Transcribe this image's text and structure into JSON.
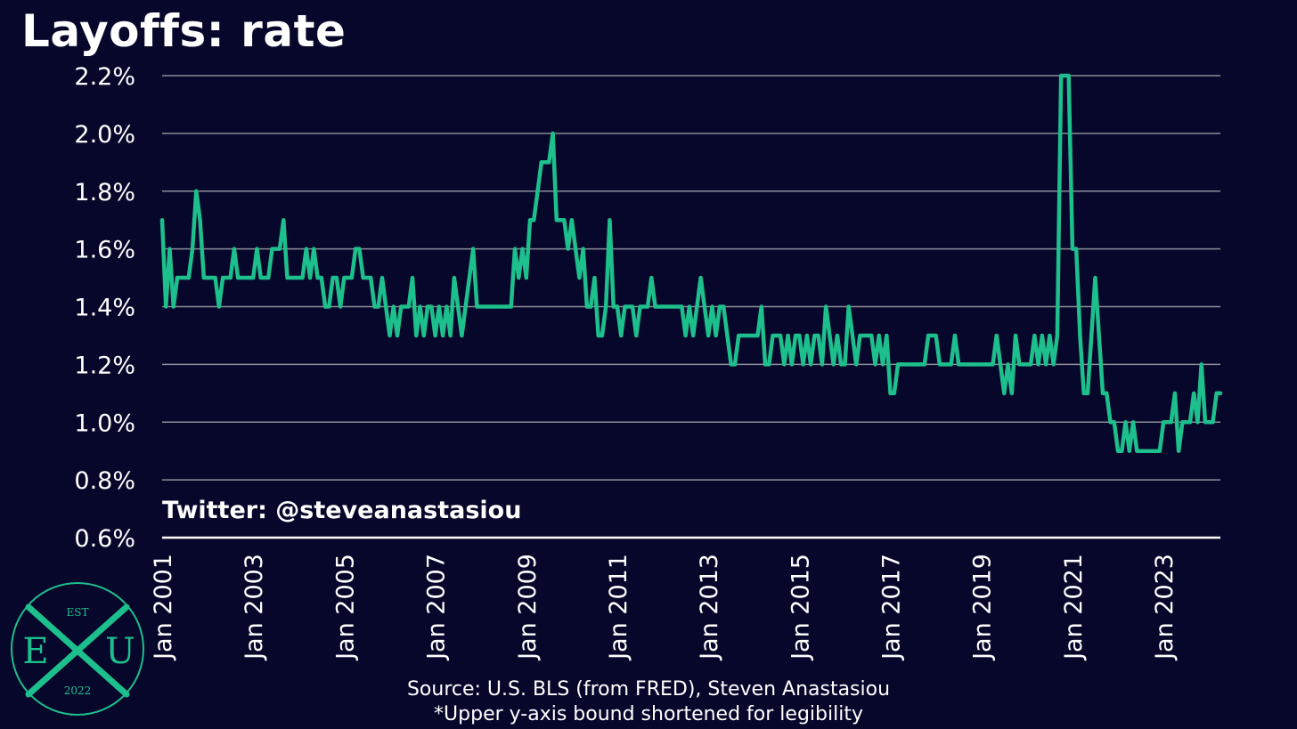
{
  "chart_data": {
    "type": "line",
    "title": "Layoffs: rate",
    "ylim": [
      0.6,
      2.2
    ],
    "yticks": [
      0.6,
      0.8,
      1.0,
      1.2,
      1.4,
      1.6,
      1.8,
      2.0,
      2.2
    ],
    "ytick_labels": [
      "0.6%",
      "0.8%",
      "1.0%",
      "1.2%",
      "1.4%",
      "1.6%",
      "1.8%",
      "2.0%",
      "2.2%"
    ],
    "xticks": [
      "Jan 2001",
      "Jan 2003",
      "Jan 2005",
      "Jan 2007",
      "Jan 2009",
      "Jan 2011",
      "Jan 2013",
      "Jan 2015",
      "Jan 2017",
      "Jan 2019",
      "Jan 2021",
      "Jan 2023"
    ],
    "grid": true,
    "line_color": "#1dbf8c",
    "series": [
      {
        "x_start": "2001-01",
        "values": [
          1.7,
          1.4,
          1.6,
          1.4,
          1.5,
          1.5,
          1.5,
          1.5,
          1.6,
          1.8,
          1.7,
          1.5,
          1.5,
          1.5,
          1.5,
          1.4,
          1.5,
          1.5,
          1.5,
          1.6,
          1.5,
          1.5,
          1.5,
          1.5,
          1.5,
          1.6,
          1.5,
          1.5,
          1.5,
          1.6,
          1.6,
          1.6,
          1.7,
          1.5,
          1.5,
          1.5,
          1.5,
          1.5,
          1.6,
          1.5,
          1.6,
          1.5,
          1.5,
          1.4,
          1.4,
          1.5,
          1.5,
          1.4,
          1.5,
          1.5,
          1.5,
          1.6,
          1.6,
          1.5,
          1.5,
          1.5,
          1.4,
          1.4,
          1.5,
          1.4,
          1.3,
          1.4,
          1.3,
          1.4,
          1.4,
          1.4,
          1.5,
          1.3,
          1.4,
          1.3,
          1.4,
          1.4,
          1.3,
          1.4,
          1.3,
          1.4,
          1.3,
          1.5,
          1.4,
          1.3,
          1.4,
          1.5,
          1.6,
          1.4,
          1.4,
          1.4,
          1.4,
          1.4,
          1.4,
          1.4,
          1.4,
          1.4,
          1.4,
          1.6,
          1.5,
          1.6,
          1.5,
          1.7,
          1.7,
          1.8,
          1.9,
          1.9,
          1.9,
          2.0,
          1.7,
          1.7,
          1.7,
          1.6,
          1.7,
          1.6,
          1.5,
          1.6,
          1.4,
          1.4,
          1.5,
          1.3,
          1.3,
          1.4,
          1.7,
          1.4,
          1.4,
          1.3,
          1.4,
          1.4,
          1.4,
          1.3,
          1.4,
          1.4,
          1.4,
          1.5,
          1.4,
          1.4,
          1.4,
          1.4,
          1.4,
          1.4,
          1.4,
          1.4,
          1.3,
          1.4,
          1.3,
          1.4,
          1.5,
          1.4,
          1.3,
          1.4,
          1.3,
          1.4,
          1.4,
          1.3,
          1.2,
          1.2,
          1.3,
          1.3,
          1.3,
          1.3,
          1.3,
          1.3,
          1.4,
          1.2,
          1.2,
          1.3,
          1.3,
          1.3,
          1.2,
          1.3,
          1.2,
          1.3,
          1.3,
          1.2,
          1.3,
          1.2,
          1.3,
          1.3,
          1.2,
          1.4,
          1.3,
          1.2,
          1.3,
          1.2,
          1.2,
          1.4,
          1.3,
          1.2,
          1.3,
          1.3,
          1.3,
          1.3,
          1.2,
          1.3,
          1.2,
          1.3,
          1.1,
          1.1,
          1.2,
          1.2,
          1.2,
          1.2,
          1.2,
          1.2,
          1.2,
          1.2,
          1.3,
          1.3,
          1.3,
          1.2,
          1.2,
          1.2,
          1.2,
          1.3,
          1.2,
          1.2,
          1.2,
          1.2,
          1.2,
          1.2,
          1.2,
          1.2,
          1.2,
          1.2,
          1.3,
          1.2,
          1.1,
          1.2,
          1.1,
          1.3,
          1.2,
          1.2,
          1.2,
          1.2,
          1.3,
          1.2,
          1.3,
          1.2,
          1.3,
          1.2,
          1.3,
          2.2,
          2.2,
          2.2,
          1.6,
          1.6,
          1.3,
          1.1,
          1.1,
          1.3,
          1.5,
          1.3,
          1.1,
          1.1,
          1.0,
          1.0,
          0.9,
          0.9,
          1.0,
          0.9,
          1.0,
          0.9,
          0.9,
          0.9,
          0.9,
          0.9,
          0.9,
          0.9,
          1.0,
          1.0,
          1.0,
          1.1,
          0.9,
          1.0,
          1.0,
          1.0,
          1.1,
          1.0,
          1.2,
          1.0,
          1.0,
          1.0,
          1.1,
          1.1
        ]
      }
    ],
    "annotations": [
      "Twitter: @steveanastasiou"
    ]
  },
  "footer": {
    "source": "Source: U.S. BLS (from FRED), Steven Anastasiou",
    "note": "*Upper y-axis bound shortened for legibility"
  },
  "logo": {
    "top_text": "EST",
    "letters": [
      "E",
      "X",
      "U"
    ],
    "year": "2022",
    "color": "#1dbf8c"
  }
}
